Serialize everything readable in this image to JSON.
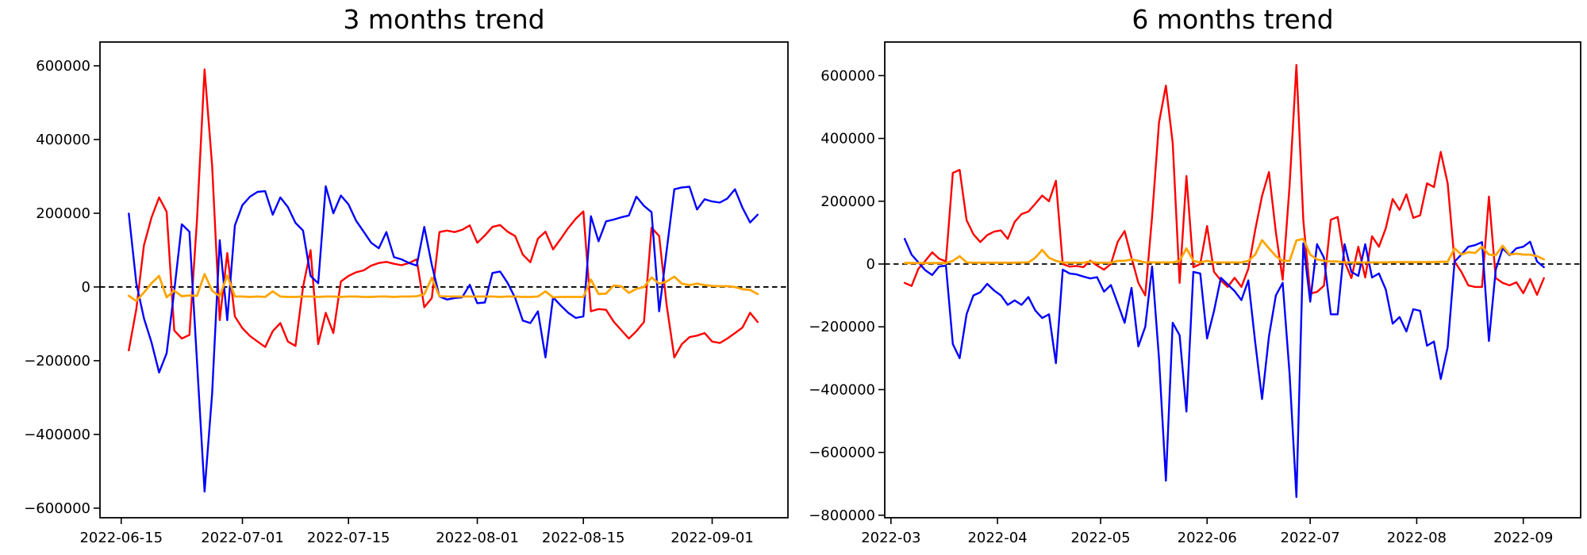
{
  "figure": {
    "background": "#ffffff"
  },
  "colors": {
    "red": "#ff0000",
    "blue": "#0000ff",
    "orange": "#ffa500",
    "zero_line": "#000000",
    "spine": "#000000"
  },
  "chart_data": [
    {
      "type": "line",
      "title": "3 months trend",
      "xlabel": "",
      "ylabel": "",
      "legend": "none",
      "grid": false,
      "zero_line": {
        "style": "dashed",
        "color": "#000000",
        "y": 0
      },
      "value_scale": 1000,
      "x_axis": {
        "unit": "days since 2022-06-15",
        "xlim": [
          -2.8,
          88
        ],
        "tick_days": [
          0,
          16,
          30,
          47,
          61,
          78
        ],
        "tick_labels": [
          "2022-06-15",
          "2022-07-01",
          "2022-07-15",
          "2022-08-01",
          "2022-08-15",
          "2022-09-01"
        ],
        "data_start_date": "2022-06-16",
        "data_start_day": 1,
        "data_step_days": 1
      },
      "y_axis": {
        "ylim": [
          -626000,
          664500
        ],
        "ticks": [
          {
            "v": 600000,
            "label": "600000"
          },
          {
            "v": 400000,
            "label": "400000"
          },
          {
            "v": 200000,
            "label": "200000"
          },
          {
            "v": 0,
            "label": "0"
          },
          {
            "v": -200000,
            "label": "−200000"
          },
          {
            "v": -400000,
            "label": "−400000"
          },
          {
            "v": -600000,
            "label": "−600000"
          }
        ]
      },
      "series": [
        {
          "name": "red",
          "color": "#ff0000",
          "line_width": 2.4,
          "values": [
            -172,
            -60,
            113,
            188,
            243,
            204,
            -118,
            -140,
            -130,
            180,
            590,
            330,
            -90,
            92,
            -80,
            -112,
            -133,
            -148,
            -163,
            -120,
            -98,
            -148,
            -160,
            0,
            100,
            -155,
            -70,
            -125,
            15,
            30,
            40,
            45,
            58,
            65,
            68,
            63,
            59,
            65,
            75,
            -55,
            -30,
            149,
            153,
            149,
            155,
            167,
            120,
            140,
            163,
            168,
            150,
            138,
            88,
            67,
            131,
            150,
            102,
            130,
            160,
            185,
            205,
            -66,
            -60,
            -62,
            -94,
            -117,
            -140,
            -120,
            -95,
            161,
            138,
            -50,
            -191,
            -155,
            -136,
            -132,
            -125,
            -148,
            -152,
            -140,
            -125,
            -110,
            -70,
            -95
          ]
        },
        {
          "name": "blue",
          "color": "#0000ff",
          "line_width": 2.4,
          "values": [
            199,
            10,
            -85,
            -150,
            -232,
            -180,
            -10,
            170,
            150,
            -200,
            -555,
            -290,
            127,
            -90,
            167,
            222,
            245,
            258,
            260,
            196,
            243,
            217,
            174,
            153,
            30,
            10,
            273,
            200,
            248,
            224,
            180,
            150,
            120,
            105,
            149,
            81,
            75,
            65,
            58,
            163,
            60,
            -26,
            -34,
            -30,
            -28,
            6,
            -44,
            -42,
            38,
            42,
            11,
            -30,
            -91,
            -98,
            -66,
            -191,
            -28,
            -50,
            -70,
            -84,
            -80,
            192,
            124,
            178,
            183,
            189,
            194,
            245,
            220,
            203,
            -66,
            100,
            265,
            270,
            272,
            210,
            238,
            232,
            229,
            240,
            265,
            215,
            175,
            196
          ]
        },
        {
          "name": "orange",
          "color": "#ffa500",
          "line_width": 2.8,
          "values": [
            -24,
            -38,
            -15,
            10,
            30,
            -28,
            -10,
            -25,
            -23,
            -24,
            35,
            -10,
            -25,
            31,
            -26,
            -26,
            -27,
            -26,
            -27,
            -12,
            -26,
            -27,
            -27,
            -26,
            -26,
            -27,
            -26,
            -26,
            -27,
            -26,
            -26,
            -27,
            -27,
            -26,
            -26,
            -27,
            -26,
            -26,
            -25,
            -20,
            25,
            -25,
            -26,
            -26,
            -26,
            -26,
            -26,
            -26,
            -26,
            -27,
            -26,
            -26,
            -27,
            -27,
            -26,
            -12,
            -28,
            -27,
            -27,
            -27,
            -27,
            20,
            -19,
            -18,
            4,
            2,
            -16,
            -5,
            0,
            26,
            9,
            15,
            28,
            9,
            5,
            9,
            5,
            3,
            2,
            2,
            0,
            -6,
            -8,
            -19
          ]
        }
      ]
    },
    {
      "type": "line",
      "title": "6 months trend",
      "xlabel": "",
      "ylabel": "",
      "legend": "none",
      "grid": false,
      "zero_line": {
        "style": "dashed",
        "color": "#000000",
        "y": 0
      },
      "value_scale": 1000,
      "x_axis": {
        "unit": "days since 2022-03-01",
        "xlim": [
          -1.8,
          200.7
        ],
        "tick_days": [
          0,
          31,
          61,
          92,
          122,
          153,
          184
        ],
        "tick_labels": [
          "2022-03",
          "2022-04",
          "2022-05",
          "2022-06",
          "2022-07",
          "2022-08",
          "2022-09"
        ],
        "data_start_date": "2022-03-05",
        "data_start_day": 4,
        "data_step_days": 2
      },
      "y_axis": {
        "ylim": [
          -808000,
          707000
        ],
        "ticks": [
          {
            "v": 600000,
            "label": "600000"
          },
          {
            "v": 400000,
            "label": "400000"
          },
          {
            "v": 200000,
            "label": "200000"
          },
          {
            "v": 0,
            "label": "0"
          },
          {
            "v": -200000,
            "label": "−200000"
          },
          {
            "v": -400000,
            "label": "−400000"
          },
          {
            "v": -600000,
            "label": "−600000"
          },
          {
            "v": -800000,
            "label": "−800000"
          }
        ]
      },
      "series": [
        {
          "name": "red",
          "color": "#ff0000",
          "line_width": 2.4,
          "values": [
            -60,
            -70,
            -15,
            10,
            37,
            17,
            8,
            290,
            300,
            140,
            95,
            70,
            92,
            103,
            107,
            80,
            134,
            159,
            167,
            192,
            218,
            200,
            265,
            0,
            -8,
            -6,
            -10,
            11,
            -5,
            -18,
            0,
            71,
            105,
            20,
            -60,
            -100,
            150,
            450,
            568,
            385,
            -60,
            280,
            -10,
            0,
            121,
            -25,
            -52,
            -73,
            -44,
            -73,
            -15,
            109,
            217,
            293,
            101,
            -50,
            250,
            634,
            139,
            -94,
            -89,
            -69,
            141,
            150,
            8,
            -45,
            55,
            -43,
            88,
            55,
            114,
            207,
            172,
            222,
            147,
            155,
            257,
            245,
            357,
            257,
            8,
            -25,
            -68,
            -73,
            -73,
            215,
            -45,
            -60,
            -68,
            -58,
            -93,
            -48,
            -98,
            -45
          ]
        },
        {
          "name": "blue",
          "color": "#0000ff",
          "line_width": 2.4,
          "values": [
            80,
            30,
            5,
            -20,
            -35,
            -8,
            -5,
            -255,
            -300,
            -160,
            -100,
            -90,
            -63,
            -84,
            -100,
            -130,
            -116,
            -130,
            -105,
            -148,
            -172,
            -160,
            -316,
            -18,
            -30,
            -33,
            -40,
            -46,
            -42,
            -88,
            -67,
            -126,
            -187,
            -76,
            -262,
            -200,
            -8,
            -300,
            -690,
            -187,
            -227,
            -470,
            -25,
            -30,
            -237,
            -150,
            -44,
            -65,
            -86,
            -115,
            -52,
            -250,
            -430,
            -230,
            -100,
            -60,
            -350,
            -742,
            66,
            -120,
            63,
            20,
            -160,
            -160,
            63,
            -25,
            -38,
            63,
            -43,
            -30,
            -81,
            -190,
            -169,
            -215,
            -144,
            -149,
            -260,
            -247,
            -366,
            -265,
            8,
            30,
            55,
            60,
            70,
            -245,
            -18,
            50,
            28,
            50,
            55,
            71,
            8,
            -10
          ]
        },
        {
          "name": "orange",
          "color": "#ffa500",
          "line_width": 2.8,
          "values": [
            3,
            3,
            3,
            3,
            3,
            3,
            3,
            10,
            25,
            5,
            4,
            4,
            4,
            4,
            4,
            4,
            4,
            5,
            5,
            20,
            45,
            20,
            10,
            5,
            4,
            4,
            4,
            8,
            4,
            4,
            4,
            10,
            10,
            15,
            10,
            5,
            5,
            5,
            5,
            5,
            10,
            50,
            10,
            5,
            10,
            5,
            5,
            5,
            5,
            5,
            10,
            30,
            76,
            50,
            25,
            10,
            10,
            75,
            80,
            30,
            15,
            10,
            8,
            8,
            5,
            5,
            5,
            5,
            5,
            5,
            5,
            6,
            6,
            6,
            6,
            6,
            6,
            6,
            7,
            7,
            50,
            30,
            38,
            35,
            55,
            30,
            28,
            58,
            30,
            33,
            30,
            30,
            25,
            15
          ]
        }
      ]
    }
  ]
}
